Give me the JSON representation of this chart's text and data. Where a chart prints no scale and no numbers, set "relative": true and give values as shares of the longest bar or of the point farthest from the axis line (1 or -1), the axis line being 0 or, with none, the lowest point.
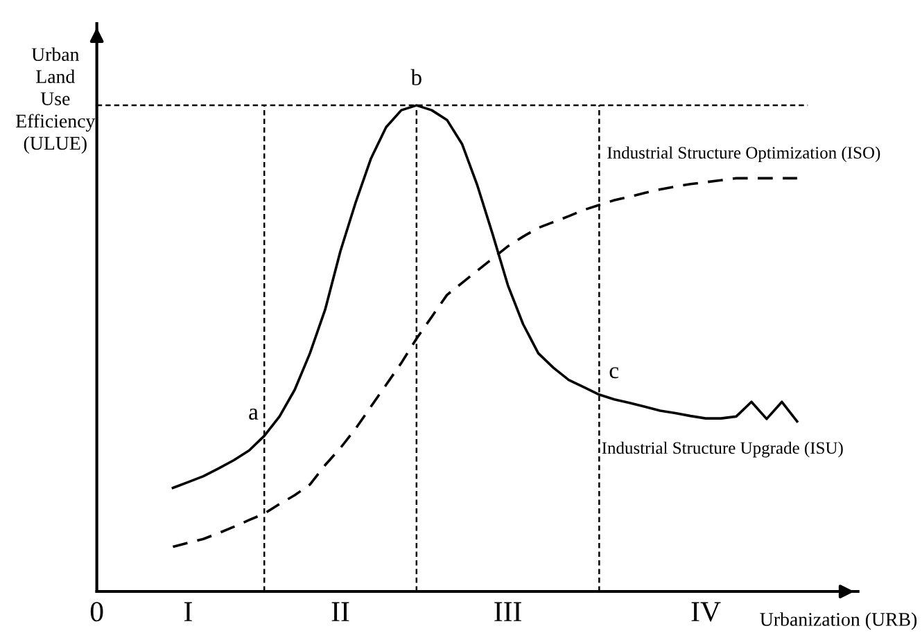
{
  "chart_data": {
    "type": "line",
    "relative": true,
    "xlabel": "Urbanization (URB)",
    "ylabel": "Urban Land Use Efficiency (ULUE)",
    "categories": [
      "0",
      null,
      null,
      null,
      null,
      null,
      "I",
      null,
      null,
      null,
      null,
      null,
      null,
      null,
      null,
      null,
      "II",
      null,
      null,
      null,
      null,
      null,
      null,
      null,
      null,
      null,
      null,
      "III",
      null,
      null,
      null,
      null,
      null,
      null,
      null,
      null,
      null,
      null,
      null,
      null,
      "IV",
      null,
      null,
      null,
      null,
      null,
      null,
      null,
      null,
      null,
      null
    ],
    "tick_labels": "x",
    "series": [
      {
        "name": "Industrial Structure Upgrade (ISU)",
        "color": "#000000",
        "line_style": "solid",
        "values": [
          null,
          null,
          null,
          null,
          null,
          0.213,
          0.225,
          0.237,
          0.253,
          0.27,
          0.29,
          0.32,
          0.36,
          0.415,
          0.49,
          0.58,
          0.7,
          0.8,
          0.89,
          0.955,
          0.99,
          1.0,
          0.99,
          0.97,
          0.92,
          0.835,
          0.735,
          0.63,
          0.55,
          0.49,
          0.46,
          0.435,
          0.42,
          0.405,
          0.395,
          0.388,
          0.38,
          0.372,
          0.367,
          0.361,
          0.356,
          0.356,
          0.36,
          0.39,
          0.355,
          0.39,
          0.35,
          null,
          null,
          null,
          null
        ]
      },
      {
        "name": "Industrial Structure Optimization (ISO)",
        "color": "#000000",
        "line_style": "dashed",
        "values": [
          null,
          null,
          null,
          null,
          null,
          0.092,
          0.1,
          0.108,
          0.12,
          0.133,
          0.147,
          0.16,
          0.18,
          0.198,
          0.22,
          0.26,
          0.295,
          0.335,
          0.38,
          0.425,
          0.47,
          0.52,
          0.565,
          0.61,
          0.635,
          0.66,
          0.685,
          0.71,
          0.73,
          0.748,
          0.76,
          0.772,
          0.785,
          0.795,
          0.805,
          0.812,
          0.82,
          0.827,
          0.833,
          0.838,
          0.842,
          0.846,
          0.85,
          0.85,
          0.85,
          0.85,
          0.85,
          null,
          null,
          null,
          null
        ]
      }
    ],
    "annotations": [
      "a",
      "b",
      "c"
    ]
  }
}
